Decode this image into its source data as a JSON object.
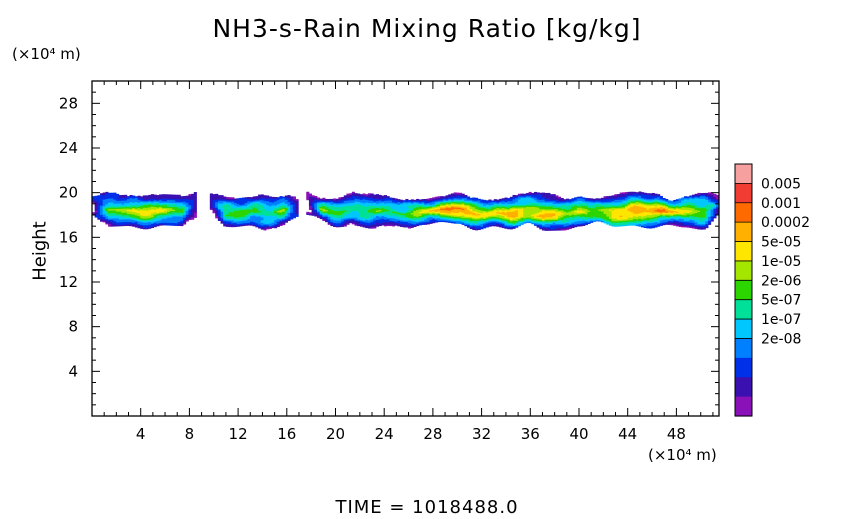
{
  "chart_data": {
    "type": "heatmap",
    "title": "NH3-s-Rain Mixing Ratio [kg/kg]",
    "ylabel": "Height",
    "xlabel": "",
    "x_unit": "(×10⁴ m)",
    "y_unit": "(×10⁴ m)",
    "xlim": [
      0,
      51.5
    ],
    "ylim": [
      0,
      30
    ],
    "x_ticks": [
      "4",
      "8",
      "12",
      "16",
      "20",
      "24",
      "28",
      "32",
      "36",
      "40",
      "44",
      "48"
    ],
    "y_ticks": [
      "4",
      "8",
      "12",
      "16",
      "20",
      "24",
      "28"
    ],
    "colorbar": {
      "labels": [
        "0.005",
        "0.001",
        "0.0002",
        "5e-05",
        "1e-05",
        "2e-06",
        "5e-07",
        "1e-07",
        "2e-08"
      ],
      "colors_top_to_bottom": [
        "#f7a0a0",
        "#f03c32",
        "#ff6a00",
        "#ffb000",
        "#ffe600",
        "#a4e600",
        "#2cd400",
        "#00e098",
        "#00c8ff",
        "#0080ff",
        "#0030e8",
        "#3a10b0",
        "#8a10b8"
      ]
    },
    "layer": {
      "bottom_height": 16.6,
      "top_height": 20.0,
      "segments_x": [
        [
          0,
          8.5
        ],
        [
          9.6,
          16.8
        ],
        [
          17.6,
          51.5
        ]
      ],
      "maxima": [
        {
          "x": 36,
          "y": 17.8,
          "value": 0.0002
        },
        {
          "x": 43.5,
          "y": 17.4,
          "value": 0.0002
        },
        {
          "x": 30,
          "y": 18.3,
          "value": 5e-05
        },
        {
          "x": 46.5,
          "y": 18.5,
          "value": 5e-05
        },
        {
          "x": 4.5,
          "y": 18.2,
          "value": 5e-06
        }
      ]
    },
    "footer": "TIME  =  1018488.0"
  }
}
